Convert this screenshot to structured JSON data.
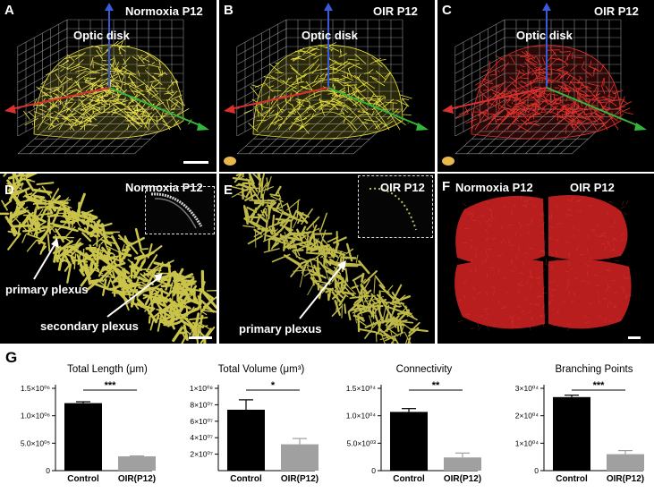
{
  "panels": [
    {
      "letter": "A",
      "title": "Normoxia P12",
      "note": "Optic disk",
      "color": "#e8e04a"
    },
    {
      "letter": "B",
      "title": "OIR P12",
      "note": "Optic disk",
      "color": "#e6df3a"
    },
    {
      "letter": "C",
      "title": "OIR P12",
      "note": "Optic disk",
      "color": "#e8302a"
    },
    {
      "letter": "D",
      "title": "Normoxia P12",
      "note1": "primary plexus",
      "note2": "secondary plexus"
    },
    {
      "letter": "E",
      "title": "OIR P12",
      "note1": "primary plexus"
    },
    {
      "letter": "F",
      "title_left": "Normoxia P12",
      "title_right": "OIR P12"
    }
  ],
  "g_label": "G",
  "chart_data": [
    {
      "type": "bar",
      "title": "Total Length (μm)",
      "categories": [
        "Control",
        "OIR(P12)"
      ],
      "values": [
        1230000,
        260000
      ],
      "ylim": [
        0,
        1500000
      ],
      "ticks": [
        {
          "v": 0,
          "label": "0"
        },
        {
          "v": 500000,
          "label": "5.0×10⁰⁵"
        },
        {
          "v": 1000000,
          "label": "1.0×10⁰⁶"
        },
        {
          "v": 1500000,
          "label": "1.5×10⁰⁶"
        }
      ],
      "error": [
        25000,
        8000
      ],
      "significance": "***",
      "colors": [
        "#000000",
        "#a0a0a0"
      ]
    },
    {
      "type": "bar",
      "title": "Total Volume (μm³)",
      "categories": [
        "Control",
        "OIR(P12)"
      ],
      "values": [
        74000000,
        32000000
      ],
      "ylim": [
        0,
        100000000
      ],
      "ticks": [
        {
          "v": 20000000,
          "label": "2×10⁰⁷"
        },
        {
          "v": 40000000,
          "label": "4×10⁰⁷"
        },
        {
          "v": 60000000,
          "label": "6×10⁰⁷"
        },
        {
          "v": 80000000,
          "label": "8×10⁰⁷"
        },
        {
          "v": 100000000,
          "label": "1×10⁰⁸"
        }
      ],
      "error": [
        12000000,
        7000000
      ],
      "significance": "*",
      "colors": [
        "#000000",
        "#a0a0a0"
      ]
    },
    {
      "type": "bar",
      "title": "Connectivity",
      "categories": [
        "Control",
        "OIR(P12)"
      ],
      "values": [
        10700,
        2400
      ],
      "ylim": [
        0,
        15000
      ],
      "ticks": [
        {
          "v": 0,
          "label": "0"
        },
        {
          "v": 5000,
          "label": "5.0×10⁰³"
        },
        {
          "v": 10000,
          "label": "1.0×10⁰⁴"
        },
        {
          "v": 15000,
          "label": "1.5×10⁰⁴"
        }
      ],
      "error": [
        600,
        800
      ],
      "significance": "**",
      "colors": [
        "#000000",
        "#a0a0a0"
      ]
    },
    {
      "type": "bar",
      "title": "Branching Points",
      "categories": [
        "Control",
        "OIR(P12)"
      ],
      "values": [
        26800,
        6000
      ],
      "ylim": [
        0,
        30000
      ],
      "ticks": [
        {
          "v": 0,
          "label": "0"
        },
        {
          "v": 10000,
          "label": "1×10⁰⁴"
        },
        {
          "v": 20000,
          "label": "2×10⁰⁴"
        },
        {
          "v": 30000,
          "label": "3×10⁰⁴"
        }
      ],
      "error": [
        700,
        1300
      ],
      "significance": "***",
      "colors": [
        "#000000",
        "#a0a0a0"
      ]
    }
  ]
}
